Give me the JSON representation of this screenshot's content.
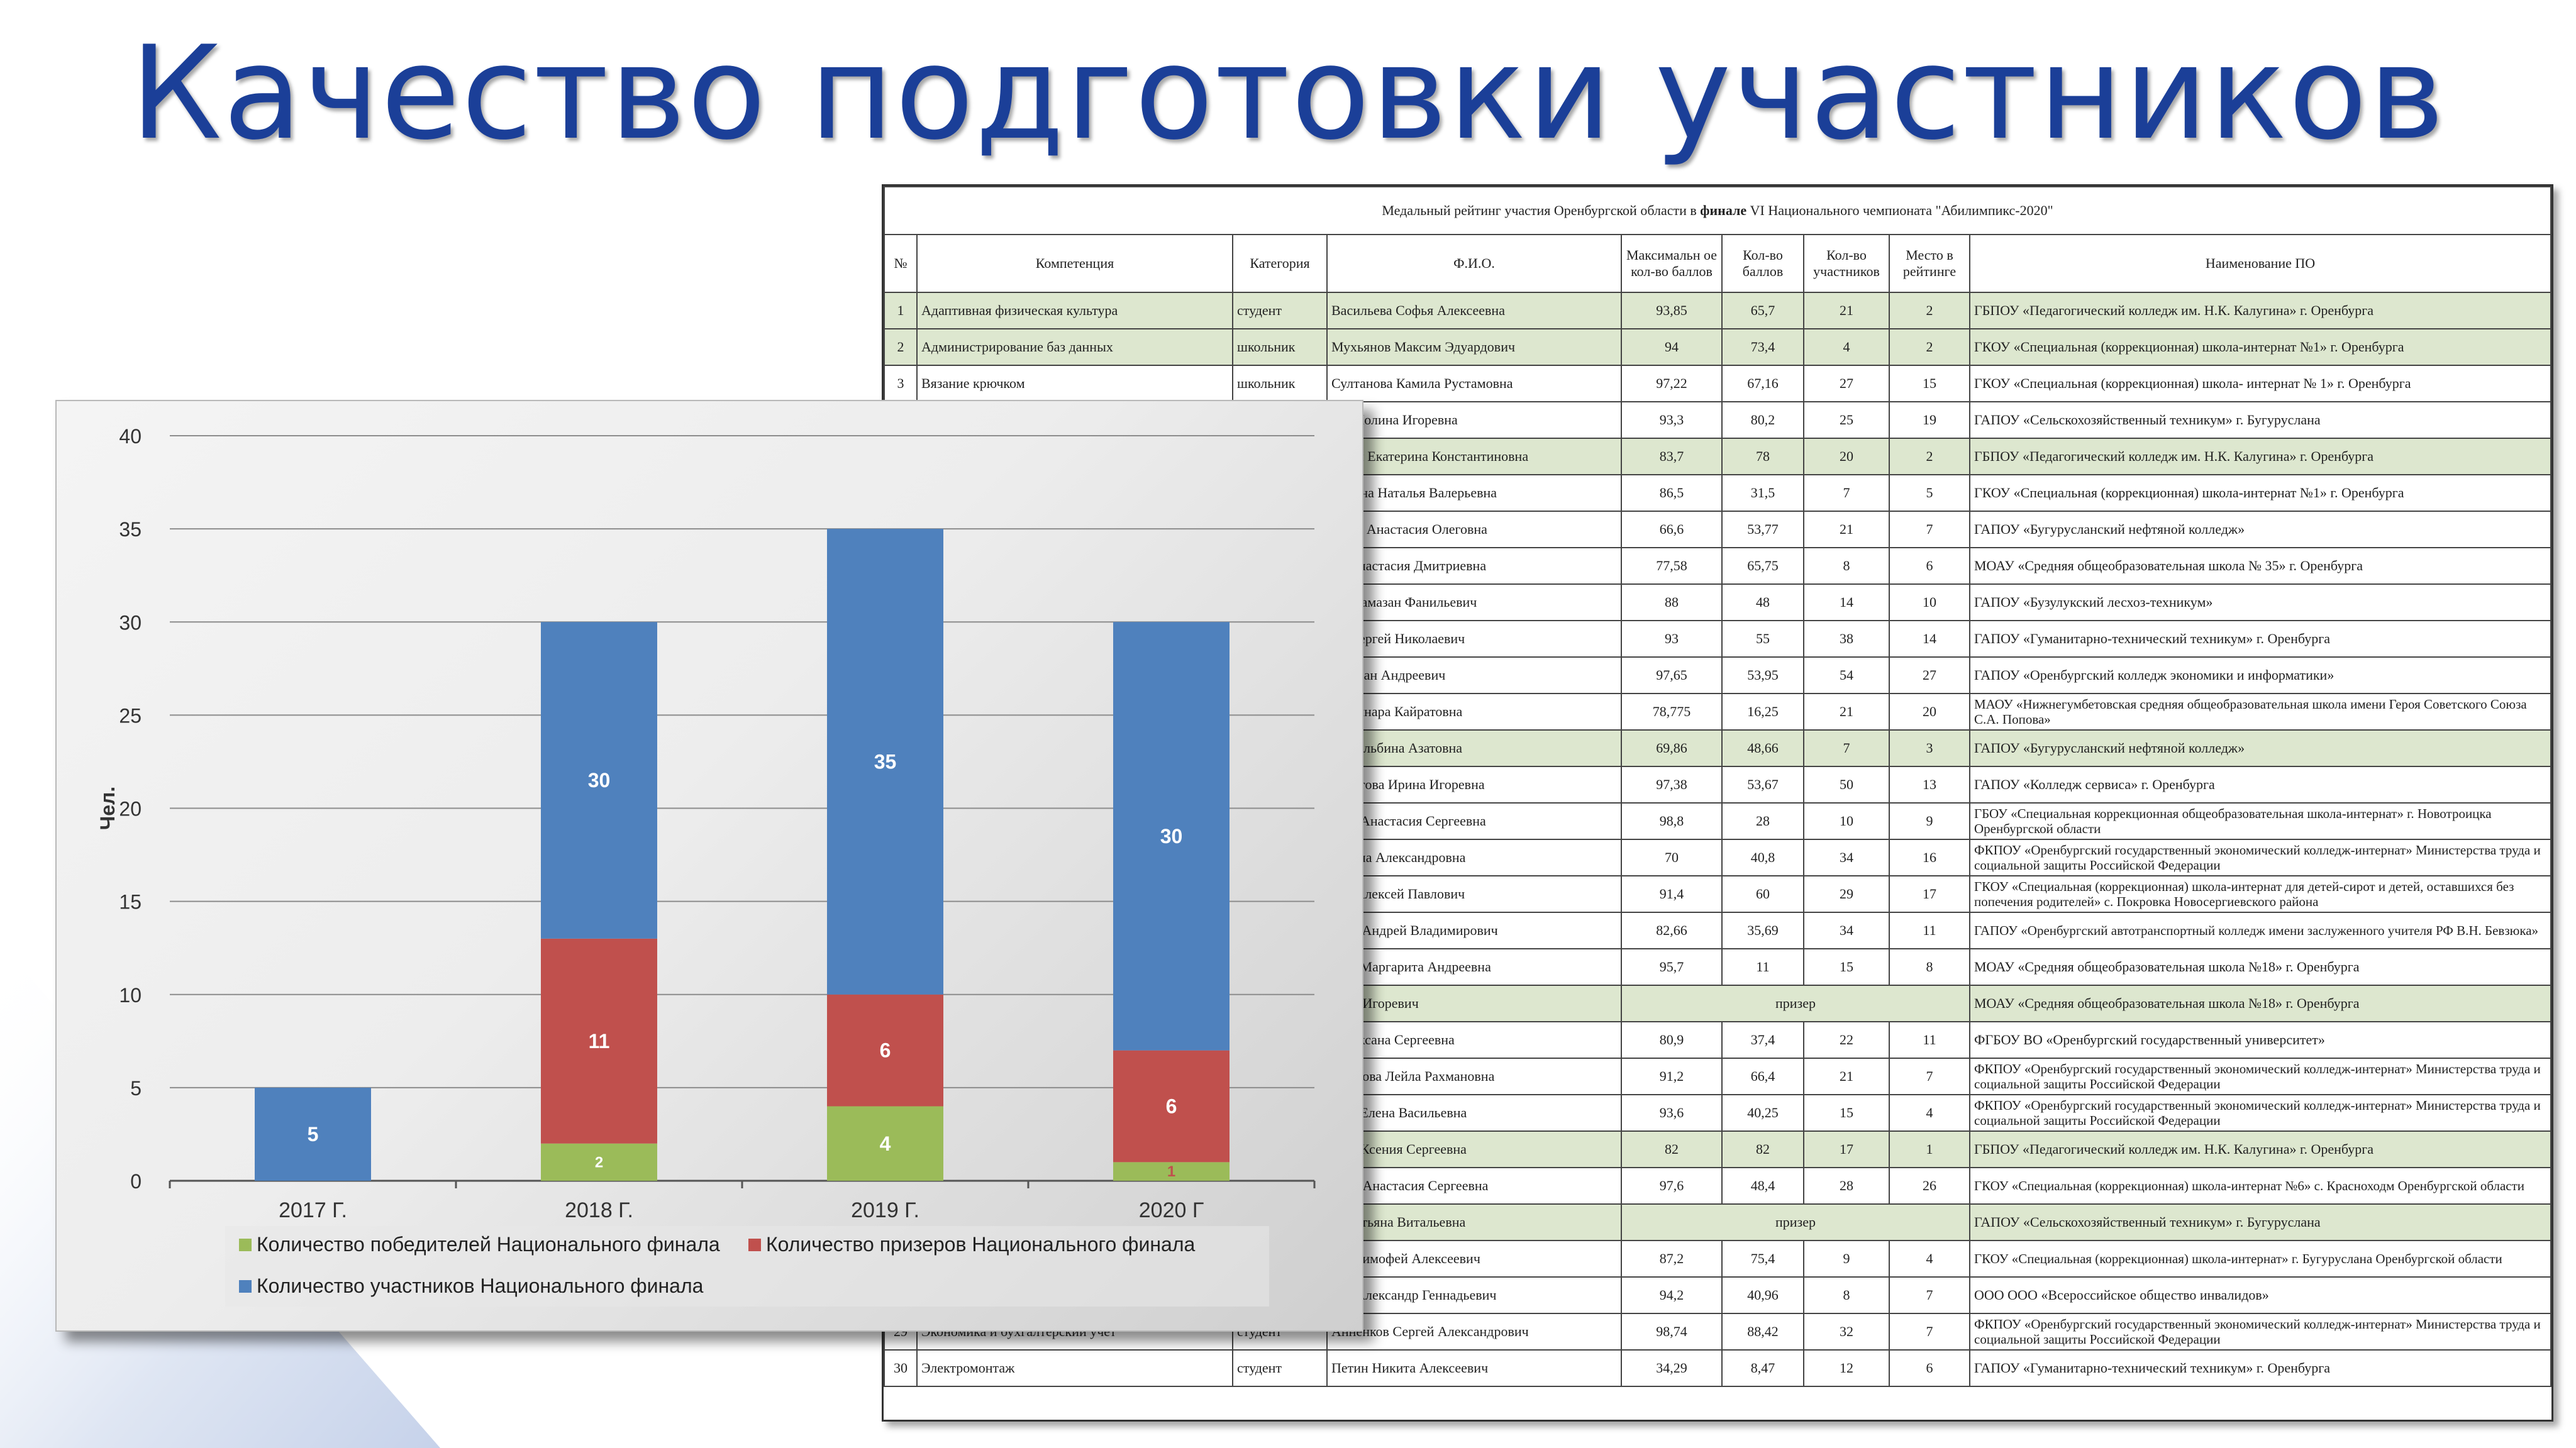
{
  "slide": {
    "title": "Качество подготовки участников"
  },
  "chart_data": {
    "type": "bar",
    "stacked": true,
    "categories": [
      "2017 Г.",
      "2018 Г.",
      "2019 Г.",
      "2020 Г"
    ],
    "series": [
      {
        "name": "Количество победителей Национального финала",
        "values": [
          0,
          2,
          4,
          1
        ],
        "labels": [
          "",
          "2",
          "4",
          "1"
        ],
        "color": "#9bbb59"
      },
      {
        "name": "Количество призеров Национального финала",
        "values": [
          0,
          11,
          6,
          6
        ],
        "labels": [
          "",
          "11",
          "6",
          "6"
        ],
        "color": "#c0504d"
      },
      {
        "name": "Количество участников Национального финала",
        "values": [
          5,
          17,
          25,
          23
        ],
        "labels": [
          "5",
          "30",
          "35",
          "30"
        ],
        "color": "#4f81bd"
      }
    ],
    "ylabel": "Чел.",
    "ylim": [
      0,
      40
    ],
    "yticks": [
      0,
      5,
      10,
      15,
      20,
      25,
      30,
      35,
      40
    ],
    "grid": true,
    "legend_position": "bottom-left"
  },
  "table": {
    "caption_prefix": "Медальный рейтинг участия Оренбургской области в ",
    "caption_bold": "финале",
    "caption_suffix": " VI Национального чемпионата \"Абилимпикс-2020\"",
    "headers": {
      "no": "№",
      "competence": "Компетенция",
      "category": "Категория",
      "fio": "Ф.И.О.",
      "max": "Максимальн ое кол-во баллов",
      "score": "Кол-во баллов",
      "participants": "Кол-во участников",
      "place": "Место в рейтинге",
      "org": "Наименование ПО"
    },
    "rows": [
      {
        "no": "1",
        "competence": "Адаптивная физическая культура",
        "category": "студент",
        "fio": "Васильева Софья Алексеевна",
        "max": "93,85",
        "score": "65,7",
        "part": "21",
        "place": "2",
        "org": "ГБПОУ «Педагогический колледж им. Н.К. Калугина» г. Оренбурга",
        "hl": true
      },
      {
        "no": "2",
        "competence": "Администрирование баз данных",
        "category": "школьник",
        "fio": "Мухьянов Максим Эдуардович",
        "max": "94",
        "score": "73,4",
        "part": "4",
        "place": "2",
        "org": "ГКОУ «Специальная (коррекционная) школа-интернат №1» г. Оренбурга",
        "hl": true
      },
      {
        "no": "3",
        "competence": "Вязание крючком",
        "category": "школьник",
        "fio": "Султанова Камила Рустамовна",
        "max": "97,22",
        "score": "67,16",
        "part": "27",
        "place": "15",
        "org": "ГКОУ «Специальная (коррекционная) школа- интернат № 1» г. Оренбурга"
      },
      {
        "no": "",
        "competence": "",
        "category": "",
        "fio": "ова Полина Игоревна",
        "max": "93,3",
        "score": "80,2",
        "part": "25",
        "place": "19",
        "org": "ГАПОУ «Сельскохозяйственный техникум» г. Бугуруслана"
      },
      {
        "no": "",
        "competence": "",
        "category": "",
        "fio": "нская Екатерина Константиновна",
        "max": "83,7",
        "score": "78",
        "part": "20",
        "place": "2",
        "org": "ГБПОУ «Педагогический колледж им. Н.К. Калугина» г. Оренбурга",
        "hl": true
      },
      {
        "no": "",
        "competence": "",
        "category": "",
        "fio": "нихина Наталья Валерьевна",
        "max": "86,5",
        "score": "31,5",
        "part": "7",
        "place": "5",
        "org": "ГКОУ «Специальная (коррекционная) школа-интернат №1» г. Оренбурга"
      },
      {
        "no": "",
        "competence": "",
        "category": "",
        "fio": "реева Анастасия Олеговна",
        "max": "66,6",
        "score": "53,77",
        "part": "21",
        "place": "7",
        "org": "ГАПОУ «Бугурусланский нефтяной колледж»"
      },
      {
        "no": "",
        "competence": "",
        "category": "",
        "fio": "на Анастасия Дмитриевна",
        "max": "77,58",
        "score": "65,75",
        "part": "8",
        "place": "6",
        "org": "МОАУ «Средняя общеобразовательная школа № 35» г. Оренбурга"
      },
      {
        "no": "",
        "competence": "",
        "category": "",
        "fio": "аев Рамазан Фанильевич",
        "max": "88",
        "score": "48",
        "part": "14",
        "place": "10",
        "org": "ГАПОУ «Бузулукский лесхоз-техникум»"
      },
      {
        "no": "",
        "competence": "",
        "category": "",
        "fio": "ин Сергей Николаевич",
        "max": "93",
        "score": "55",
        "part": "38",
        "place": "14",
        "org": "ГАПОУ «Гуманитарно-технический техникум» г. Оренбурга"
      },
      {
        "no": "",
        "competence": "",
        "category": "",
        "fio": "ев Иван Андреевич",
        "max": "97,65",
        "score": "53,95",
        "part": "54",
        "place": "27",
        "org": "ГАПОУ «Оренбургский колледж экономики и информатики»"
      },
      {
        "no": "",
        "competence": "",
        "category": "",
        "fio": "ва Динара Кайратовна",
        "max": "78,775",
        "score": "16,25",
        "part": "21",
        "place": "20",
        "org": "МАОУ «Нижнегумбетовская средняя общеобразовательная школа имени Героя Советского Союза С.А. Попова»"
      },
      {
        "no": "",
        "competence": "",
        "category": "",
        "fio": "ева Альбина Азатовна",
        "max": "69,86",
        "score": "48,66",
        "part": "7",
        "place": "3",
        "org": "ГАПОУ «Бугурусланский нефтяной колледж»",
        "hl": true
      },
      {
        "no": "",
        "competence": "",
        "category": "",
        "fio": "хаметова Ирина Игоревна",
        "max": "97,38",
        "score": "53,67",
        "part": "50",
        "place": "13",
        "org": "ГАПОУ «Колледж сервиса» г. Оренбурга"
      },
      {
        "no": "",
        "competence": "",
        "category": "",
        "fio": "кова Анастасия Сергеевна",
        "max": "98,8",
        "score": "28",
        "part": "10",
        "place": "9",
        "org": "ГБОУ «Специальная коррекционная общеобразовательная школа-интернат» г. Новотроицка Оренбургской области"
      },
      {
        "no": "",
        "competence": "",
        "category": "",
        "fio": "а Анна Александровна",
        "max": "70",
        "score": "40,8",
        "part": "34",
        "place": "16",
        "org": "ФКПОУ «Оренбургский государственный экономический колледж-интернат» Министерства труда и социальной защиты Российской Федерации"
      },
      {
        "no": "",
        "competence": "",
        "category": "",
        "fio": "цев Алексей Павлович",
        "max": "91,4",
        "score": "60",
        "part": "29",
        "place": "17",
        "org": "ГКОУ «Специальная (коррекционная) школа-интернат для детей-сирот и детей, оставшихся без попечения родителей» с. Покровка Новосергиевского района"
      },
      {
        "no": "",
        "competence": "",
        "category": "",
        "fio": "евич Андрей Владимирович",
        "max": "82,66",
        "score": "35,69",
        "part": "34",
        "place": "11",
        "org": "ГАПОУ «Оренбургский автотранспортный колледж имени заслуженного учителя РФ В.Н. Бевзюка»"
      },
      {
        "no": "",
        "competence": "",
        "category": "",
        "fio": "ская Маргарита Андреевна",
        "max": "95,7",
        "score": "11",
        "part": "15",
        "place": "8",
        "org": "МОАУ «Средняя общеобразовательная школа №18» г. Оренбурга"
      },
      {
        "no": "",
        "competence": "",
        "category": "",
        "fio": "Егор Игоревич",
        "merged": "призер",
        "org": "МОАУ «Средняя общеобразовательная школа №18» г. Оренбурга",
        "hl": true
      },
      {
        "no": "",
        "competence": "",
        "category": "",
        "fio": "на Оксана Сергеевна",
        "max": "80,9",
        "score": "37,4",
        "part": "22",
        "place": "11",
        "org": "ФГБОУ ВО «Оренбургский государственный университет»"
      },
      {
        "no": "",
        "competence": "",
        "category": "",
        "fio": "шханова Лейла Рахмановна",
        "max": "91,2",
        "score": "66,4",
        "part": "21",
        "place": "7",
        "org": "ФКПОУ «Оренбургский государственный экономический колледж-интернат» Министерства труда и социальной защиты Российской Федерации"
      },
      {
        "no": "",
        "competence": "",
        "category": "",
        "fio": "вева Елена Васильевна",
        "max": "93,6",
        "score": "40,25",
        "part": "15",
        "place": "4",
        "org": "ФКПОУ «Оренбургский государственный экономический колледж-интернат» Министерства труда и социальной защиты Российской Федерации"
      },
      {
        "no": "",
        "competence": "",
        "category": "",
        "fio": "кова Ксения Сергеевна",
        "max": "82",
        "score": "82",
        "part": "17",
        "place": "1",
        "org": "ГБПОУ «Педагогический колледж им. Н.К. Калугина» г. Оренбурга",
        "hl": true
      },
      {
        "no": "",
        "competence": "",
        "category": "",
        "fio": "кина Анастасия Сергеевна",
        "max": "97,6",
        "score": "48,4",
        "part": "28",
        "place": "26",
        "org": "ГКОУ «Специальная (коррекционная) школа-интернат №6» с. Красноходм Оренбургской области"
      },
      {
        "no": "",
        "competence": "",
        "category": "",
        "fio": "ва Татьяна Витальевна",
        "merged": "призер",
        "org": "ГАПОУ «Сельскохозяйственный техникум» г. Бугуруслана",
        "hl": true
      },
      {
        "no": "",
        "competence": "",
        "category": "",
        "fio": "ков Тимофей Алексеевич",
        "max": "87,2",
        "score": "75,4",
        "part": "9",
        "place": "4",
        "org": "ГКОУ «Специальная (коррекционная) школа-интернат» г. Бугуруслана Оренбургской области"
      },
      {
        "no": "",
        "competence": "",
        "category": "",
        "fio": "дов Александр Геннадьевич",
        "max": "94,2",
        "score": "40,96",
        "part": "8",
        "place": "7",
        "org": "ООО ООО «Всероссийское общество инвалидов»"
      },
      {
        "no": "29",
        "competence": "Экономика и бухгалтерский учет",
        "category": "студент",
        "fio": "Анненков Сергей Александрович",
        "max": "98,74",
        "score": "88,42",
        "part": "32",
        "place": "7",
        "org": "ФКПОУ «Оренбургский государственный экономический колледж-интернат» Министерства труда и социальной защиты Российской Федерации"
      },
      {
        "no": "30",
        "competence": "Электромонтаж",
        "category": "студент",
        "fio": "Петин Никита Алексеевич",
        "max": "34,29",
        "score": "8,47",
        "part": "12",
        "place": "6",
        "org": "ГАПОУ «Гуманитарно-технический техникум» г. Оренбурга"
      }
    ]
  }
}
